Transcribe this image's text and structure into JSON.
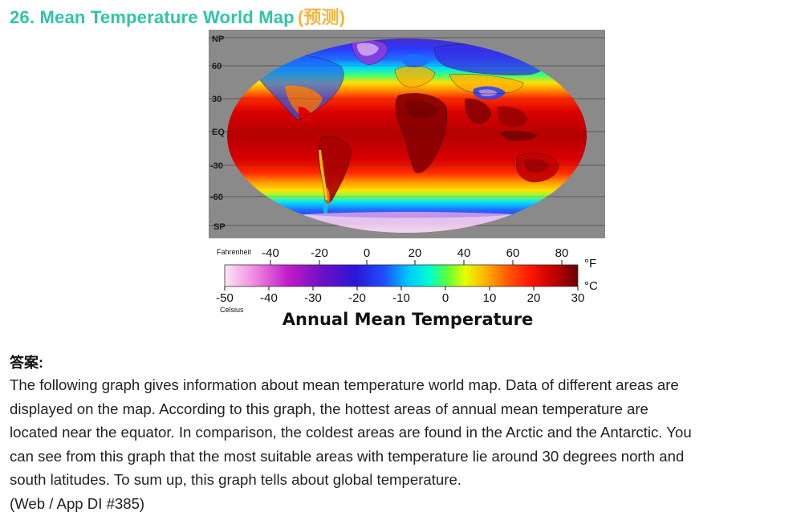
{
  "header": {
    "title": "26. Mean Temperature World Map",
    "tag": "(预测)"
  },
  "map": {
    "latitude_labels": [
      "NP",
      "60",
      "30",
      "EQ",
      "-30",
      "-60",
      "SP"
    ],
    "colors": {
      "background": "#8a8a8a",
      "hot": "#a30000",
      "warm": "#ff2a00",
      "mild": "#ffcc00",
      "cool": "#00e0ff",
      "cold": "#2a40ff",
      "frigid": "#6a0fd0",
      "polar": "#f6d8ee"
    }
  },
  "legend": {
    "fahrenheit_label": "Fahrenheit",
    "fahrenheit_ticks": [
      "-40",
      "-20",
      "0",
      "20",
      "40",
      "60",
      "80"
    ],
    "fahrenheit_unit": "°F",
    "celsius_label": "Celsius",
    "celsius_ticks": [
      "-50",
      "-40",
      "-30",
      "-20",
      "-10",
      "0",
      "10",
      "20",
      "30"
    ],
    "celsius_unit": "°C",
    "title": "Annual Mean Temperature"
  },
  "answer": {
    "heading": "答案:",
    "lines": [
      "The following graph gives information about mean temperature world map. Data of different areas are",
      "displayed on the map. According to this graph, the hottest areas of annual mean temperature are",
      "located near the equator. In comparison, the coldest areas are found in the Arctic and the Antarctic. You",
      "can see from this graph that the most suitable areas with temperature lie around 30 degrees north and",
      "south latitudes. To sum up, this graph tells about global temperature.",
      "(Web / App DI #385)"
    ]
  }
}
